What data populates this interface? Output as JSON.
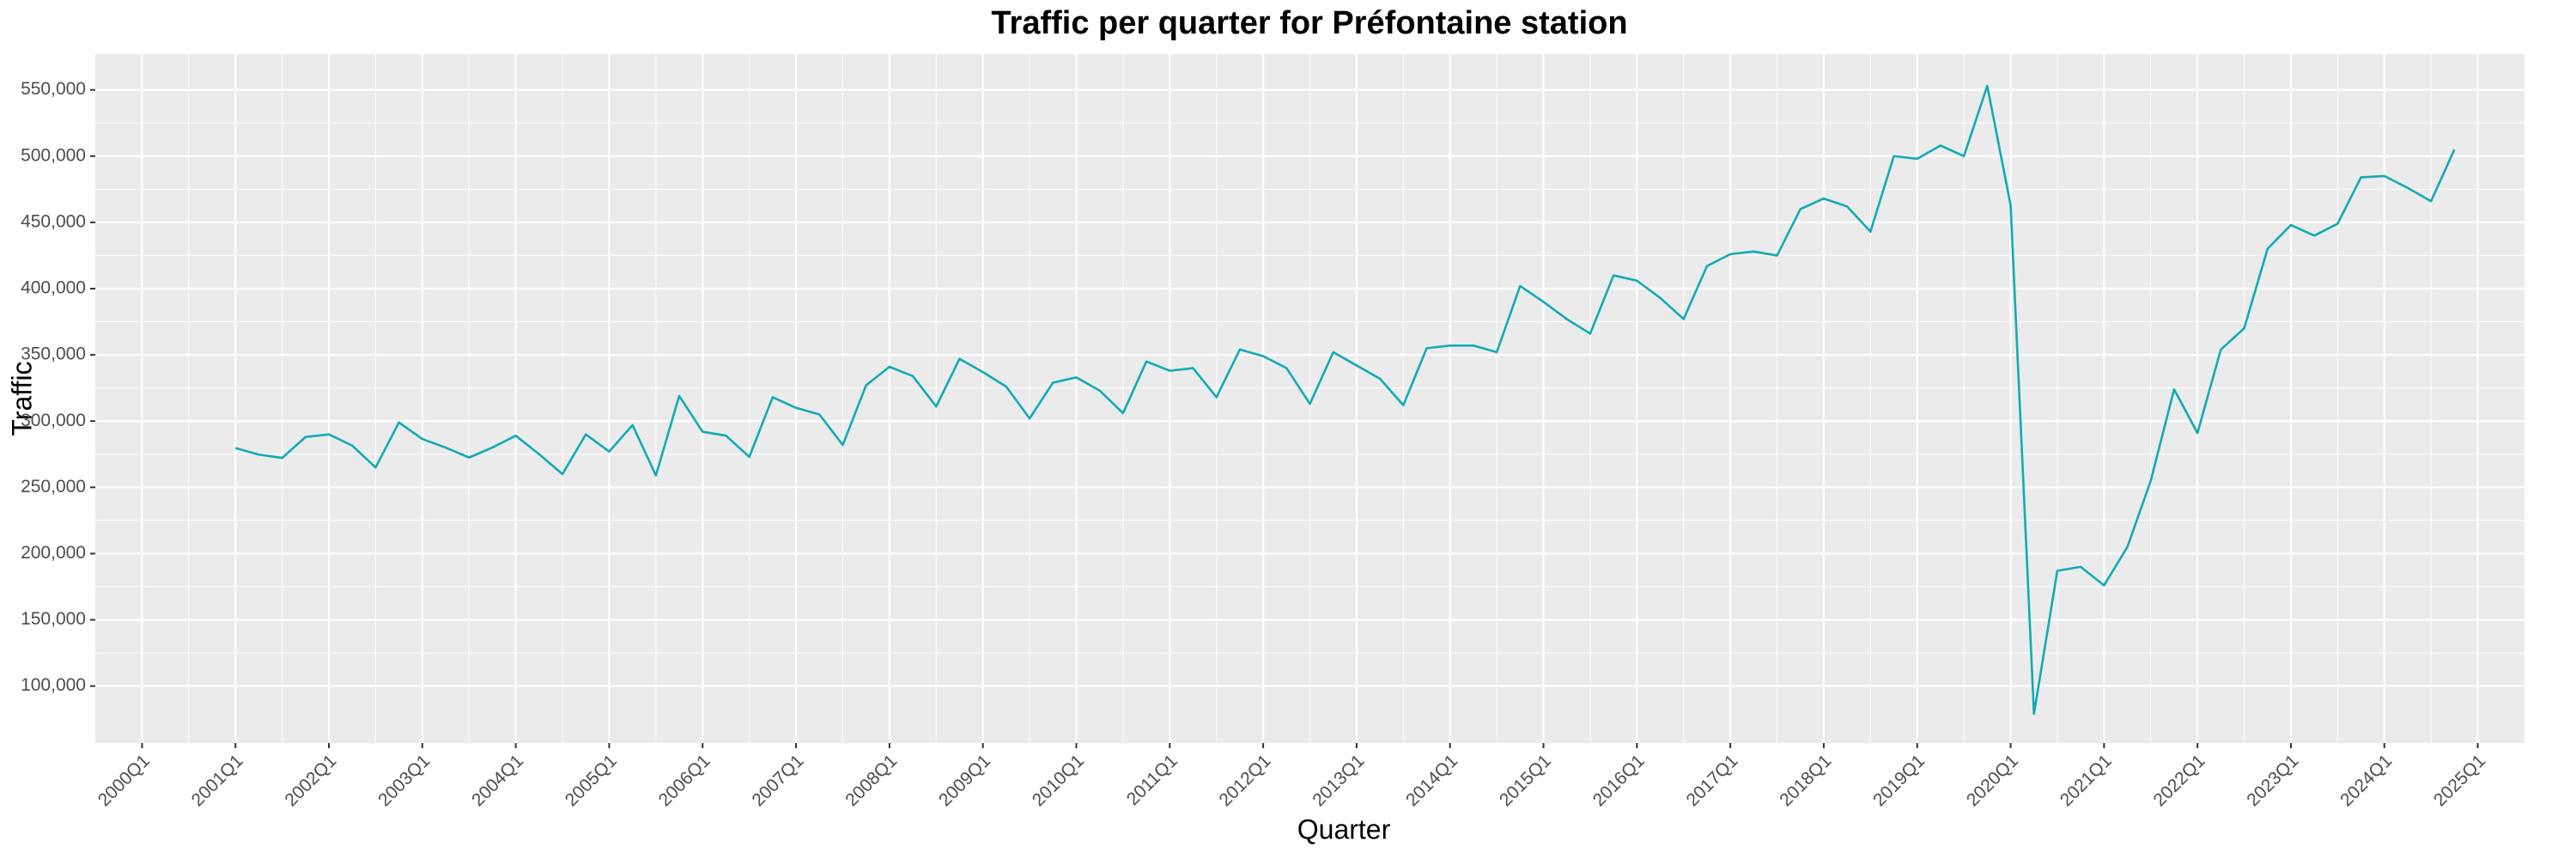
{
  "chart_data": {
    "type": "line",
    "title": "Traffic per quarter for Préfontaine station",
    "x_label": "Quarter",
    "y_label": "Traffic",
    "x": [
      "2001Q1",
      "2001Q2",
      "2001Q3",
      "2001Q4",
      "2002Q1",
      "2002Q2",
      "2002Q3",
      "2002Q4",
      "2003Q1",
      "2003Q2",
      "2003Q3",
      "2003Q4",
      "2004Q1",
      "2004Q2",
      "2004Q3",
      "2004Q4",
      "2005Q1",
      "2005Q2",
      "2005Q3",
      "2005Q4",
      "2006Q1",
      "2006Q2",
      "2006Q3",
      "2006Q4",
      "2007Q1",
      "2007Q2",
      "2007Q3",
      "2007Q4",
      "2008Q1",
      "2008Q2",
      "2008Q3",
      "2008Q4",
      "2009Q1",
      "2009Q2",
      "2009Q3",
      "2009Q4",
      "2010Q1",
      "2010Q2",
      "2010Q3",
      "2010Q4",
      "2011Q1",
      "2011Q2",
      "2011Q3",
      "2011Q4",
      "2012Q1",
      "2012Q2",
      "2012Q3",
      "2012Q4",
      "2013Q1",
      "2013Q2",
      "2013Q3",
      "2013Q4",
      "2014Q1",
      "2014Q2",
      "2014Q3",
      "2014Q4",
      "2015Q1",
      "2015Q2",
      "2015Q3",
      "2015Q4",
      "2016Q1",
      "2016Q2",
      "2016Q3",
      "2016Q4",
      "2017Q1",
      "2017Q2",
      "2017Q3",
      "2017Q4",
      "2018Q1",
      "2018Q2",
      "2018Q3",
      "2018Q4",
      "2019Q1",
      "2019Q2",
      "2019Q3",
      "2019Q4",
      "2020Q1",
      "2020Q2",
      "2020Q3",
      "2020Q4",
      "2021Q1",
      "2021Q2",
      "2021Q3",
      "2021Q4",
      "2022Q1",
      "2022Q2",
      "2022Q3",
      "2022Q4",
      "2023Q1",
      "2023Q2",
      "2023Q3",
      "2023Q4",
      "2024Q1",
      "2024Q2",
      "2024Q3",
      "2024Q4"
    ],
    "series": [
      {
        "name": "Traffic",
        "color": "#13aab5",
        "values": [
          279600,
          274700,
          272200,
          288000,
          290000,
          281500,
          265000,
          299000,
          286500,
          280000,
          272500,
          280000,
          289000,
          275000,
          260000,
          290000,
          277000,
          297000,
          259000,
          319000,
          292000,
          289000,
          273000,
          318000,
          310000,
          305000,
          282000,
          327000,
          341000,
          334000,
          311000,
          347000,
          337000,
          326000,
          302000,
          329000,
          333000,
          323000,
          306000,
          345000,
          338000,
          340000,
          318000,
          354000,
          349000,
          340000,
          313000,
          352000,
          342000,
          332000,
          312000,
          355000,
          357000,
          357000,
          352000,
          402000,
          390000,
          377000,
          366000,
          410000,
          406000,
          393000,
          377000,
          417000,
          426000,
          428000,
          425000,
          460000,
          468000,
          462000,
          443000,
          500000,
          498000,
          508000,
          500000,
          553000,
          463000,
          79000,
          187000,
          190000,
          176000,
          205000,
          255000,
          324000,
          291000,
          354000,
          370000,
          430000,
          448000,
          440000,
          449000,
          484000,
          485000,
          476000,
          466000,
          505000
        ]
      }
    ],
    "xlim": [
      "1999Q3",
      "2025Q3"
    ],
    "xticks": [
      "2000Q1",
      "2001Q1",
      "2002Q1",
      "2003Q1",
      "2004Q1",
      "2005Q1",
      "2006Q1",
      "2007Q1",
      "2008Q1",
      "2009Q1",
      "2010Q1",
      "2011Q1",
      "2012Q1",
      "2013Q1",
      "2014Q1",
      "2015Q1",
      "2016Q1",
      "2017Q1",
      "2018Q1",
      "2019Q1",
      "2020Q1",
      "2021Q1",
      "2022Q1",
      "2023Q1",
      "2024Q1",
      "2025Q1"
    ],
    "ylim": [
      57000,
      577000
    ],
    "yticks": [
      {
        "value": 100000,
        "label": "100,000"
      },
      {
        "value": 150000,
        "label": "150,000"
      },
      {
        "value": 200000,
        "label": "200,000"
      },
      {
        "value": 250000,
        "label": "250,000"
      },
      {
        "value": 300000,
        "label": "300,000"
      },
      {
        "value": 350000,
        "label": "350,000"
      },
      {
        "value": 400000,
        "label": "400,000"
      },
      {
        "value": 450000,
        "label": "450,000"
      },
      {
        "value": 500000,
        "label": "500,000"
      },
      {
        "value": 550000,
        "label": "550,000"
      }
    ],
    "grid": true
  }
}
